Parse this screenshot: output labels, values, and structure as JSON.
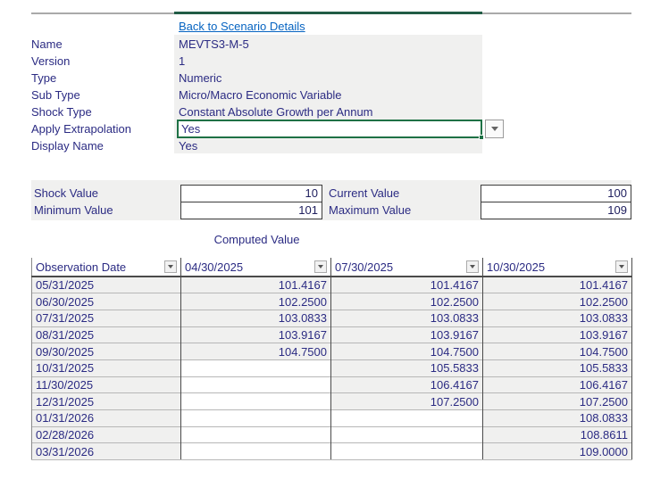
{
  "colors": {
    "accent_green": "#1E7145",
    "topbar_green": "#215C45",
    "navy_text": "#2B2B83",
    "link_blue": "#0563C1",
    "panel_gray": "#F0F0EF"
  },
  "nav": {
    "back_link": "Back to Scenario Details"
  },
  "details": {
    "rows": [
      {
        "label": "Name",
        "value": "MEVTS3-M-5"
      },
      {
        "label": "Version",
        "value": "1"
      },
      {
        "label": "Type",
        "value": "Numeric"
      },
      {
        "label": "Sub Type",
        "value": "Micro/Macro Economic Variable"
      },
      {
        "label": "Shock Type",
        "value": "Constant Absolute Growth per Annum"
      },
      {
        "label": "Apply Extrapolation",
        "value": "Yes",
        "state": "selected-cell-with-dropdown"
      },
      {
        "label": "Display Name",
        "value": "Yes"
      }
    ]
  },
  "shock_panel": {
    "fields": [
      {
        "label": "Shock Value",
        "value": "10"
      },
      {
        "label": "Current Value",
        "value": "100"
      },
      {
        "label": "Minimum Value",
        "value": "101"
      },
      {
        "label": "Maximum Value",
        "value": "109"
      }
    ]
  },
  "computed_section": {
    "title": "Computed Value"
  },
  "table": {
    "headers": [
      "Observation Date",
      "04/30/2025",
      "07/30/2025",
      "10/30/2025"
    ],
    "rows": [
      [
        "05/31/2025",
        "101.4167",
        "101.4167",
        "101.4167"
      ],
      [
        "06/30/2025",
        "102.2500",
        "102.2500",
        "102.2500"
      ],
      [
        "07/31/2025",
        "103.0833",
        "103.0833",
        "103.0833"
      ],
      [
        "08/31/2025",
        "103.9167",
        "103.9167",
        "103.9167"
      ],
      [
        "09/30/2025",
        "104.7500",
        "104.7500",
        "104.7500"
      ],
      [
        "10/31/2025",
        "",
        "105.5833",
        "105.5833"
      ],
      [
        "11/30/2025",
        "",
        "106.4167",
        "106.4167"
      ],
      [
        "12/31/2025",
        "",
        "107.2500",
        "107.2500"
      ],
      [
        "01/31/2026",
        "",
        "",
        "108.0833"
      ],
      [
        "02/28/2026",
        "",
        "",
        "108.8611"
      ],
      [
        "03/31/2026",
        "",
        "",
        "109.0000"
      ]
    ]
  }
}
